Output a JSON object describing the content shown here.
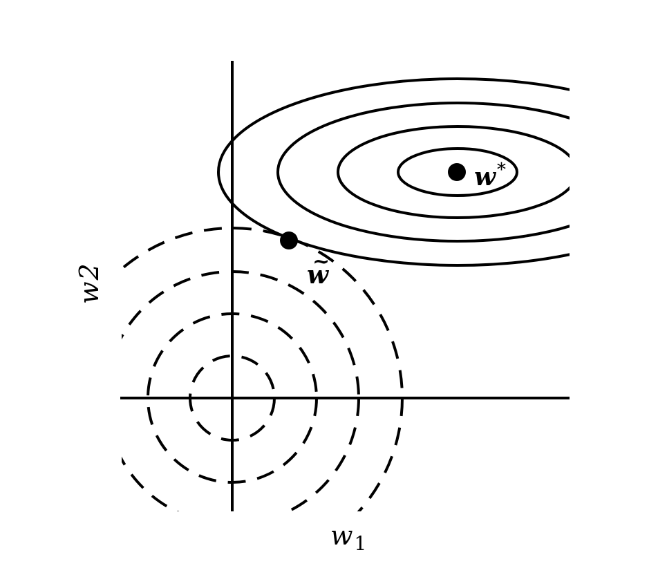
{
  "figure": {
    "axis_labels": {
      "x": "w",
      "x_subscript": "1",
      "y": "w",
      "y_subscript": "2"
    },
    "points": {
      "optimum_label": "w",
      "optimum_superscript": "*",
      "regularized_label": "w",
      "regularized_accent": "~"
    },
    "colors": {
      "stroke": "#000000",
      "background": "#ffffff"
    }
  }
}
